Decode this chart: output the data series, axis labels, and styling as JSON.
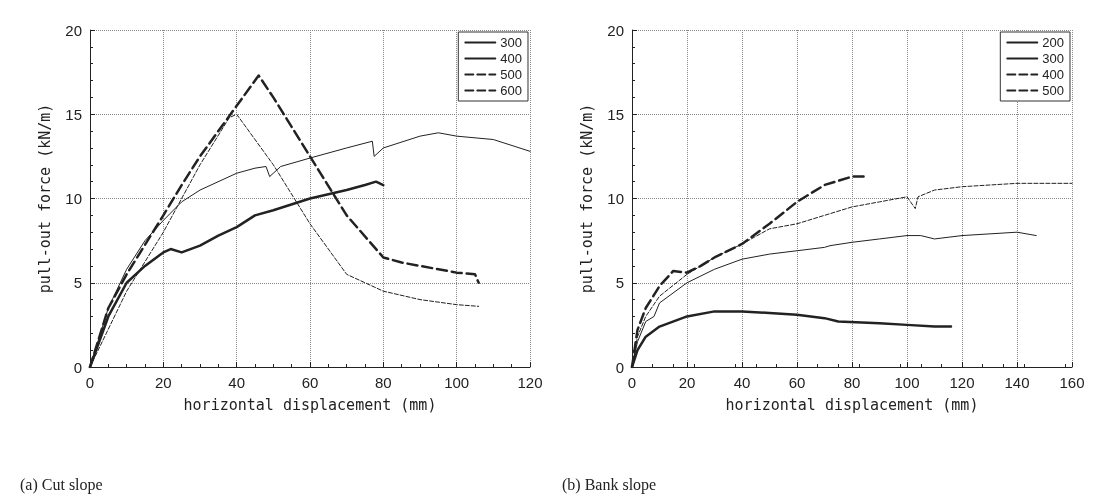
{
  "chart_data": [
    {
      "type": "line",
      "xlabel": "horizontal displacement (mm)",
      "ylabel": "pull-out force (kN/m)",
      "annotations": [
        "(a) Cut slope"
      ],
      "xlim": [
        0,
        120
      ],
      "xticks": [
        0,
        20,
        40,
        60,
        80,
        100,
        120
      ],
      "ylim": [
        0,
        20
      ],
      "yticks": [
        0,
        5,
        10,
        15,
        20
      ],
      "grid": true,
      "legend": "top right",
      "marker": "none",
      "series": [
        {
          "name": "300",
          "color": "#222222",
          "line_style": "solid",
          "x": [
            0,
            5,
            10,
            15,
            20,
            22,
            25,
            30,
            35,
            40,
            45,
            50,
            60,
            70,
            75,
            78,
            80
          ],
          "values": [
            0,
            3,
            5,
            6,
            6.8,
            7,
            6.8,
            7.2,
            7.8,
            8.3,
            9,
            9.3,
            10,
            10.5,
            10.8,
            11,
            10.8
          ]
        },
        {
          "name": "400",
          "color": "#222222",
          "line_style": "solid",
          "x": [
            0,
            5,
            10,
            15,
            20,
            25,
            30,
            40,
            45,
            48,
            49,
            52,
            60,
            70,
            77,
            77.5,
            80,
            90,
            95,
            100,
            110,
            120
          ],
          "values": [
            0,
            3.5,
            5.8,
            7.5,
            8.7,
            9.8,
            10.5,
            11.5,
            11.8,
            11.9,
            11.3,
            11.9,
            12.4,
            13,
            13.4,
            12.5,
            13,
            13.7,
            13.9,
            13.7,
            13.5,
            12.8
          ]
        },
        {
          "name": "500",
          "color": "#222222",
          "line_style": "dashed",
          "x": [
            0,
            10,
            20,
            30,
            38,
            40,
            50,
            60,
            70,
            80,
            90,
            100,
            106
          ],
          "values": [
            0,
            4.5,
            8,
            12,
            14.8,
            15,
            12,
            8.5,
            5.5,
            4.5,
            4,
            3.7,
            3.6
          ]
        },
        {
          "name": "600",
          "color": "#222222",
          "line_style": "dashed",
          "x": [
            0,
            5,
            10,
            20,
            25,
            30,
            35,
            40,
            46,
            50,
            60,
            70,
            80,
            85,
            90,
            100,
            105,
            106
          ],
          "values": [
            0,
            3.5,
            5.5,
            9,
            10.8,
            12.5,
            14,
            15.5,
            17.3,
            16,
            12.5,
            9,
            6.5,
            6.2,
            6,
            5.6,
            5.5,
            5
          ]
        }
      ]
    },
    {
      "type": "line",
      "xlabel": "horizontal displacement (mm)",
      "ylabel": "pull-out force (kN/m)",
      "annotations": [
        "(b) Bank slope"
      ],
      "xlim": [
        0,
        160
      ],
      "xticks": [
        0,
        20,
        40,
        60,
        80,
        100,
        120,
        140,
        160
      ],
      "ylim": [
        0,
        20
      ],
      "yticks": [
        0,
        5,
        10,
        15,
        20
      ],
      "grid": true,
      "legend": "top right",
      "marker": "none",
      "series": [
        {
          "name": "200",
          "color": "#222222",
          "line_style": "solid",
          "x": [
            0,
            2,
            5,
            10,
            20,
            30,
            40,
            50,
            60,
            70,
            75,
            90,
            100,
            110,
            116
          ],
          "values": [
            0,
            1,
            1.8,
            2.4,
            3,
            3.3,
            3.3,
            3.2,
            3.1,
            2.9,
            2.7,
            2.6,
            2.5,
            2.4,
            2.4
          ]
        },
        {
          "name": "300",
          "color": "#222222",
          "line_style": "solid",
          "x": [
            0,
            2,
            5,
            8,
            10,
            20,
            30,
            40,
            50,
            60,
            70,
            72,
            80,
            90,
            100,
            105,
            110,
            120,
            140,
            147
          ],
          "values": [
            0,
            1.5,
            2.7,
            3,
            3.8,
            5,
            5.8,
            6.4,
            6.7,
            6.9,
            7.1,
            7.2,
            7.4,
            7.6,
            7.8,
            7.8,
            7.6,
            7.8,
            8,
            7.8
          ]
        },
        {
          "name": "400",
          "color": "#222222",
          "line_style": "dashed",
          "x": [
            0,
            2,
            5,
            10,
            20,
            30,
            40,
            50,
            60,
            70,
            80,
            90,
            100,
            103,
            104,
            110,
            120,
            140,
            160
          ],
          "values": [
            0,
            1.8,
            3,
            4.2,
            5.5,
            6.5,
            7.3,
            8.2,
            8.5,
            9,
            9.5,
            9.8,
            10.1,
            9.4,
            10.1,
            10.5,
            10.7,
            10.9,
            10.9
          ]
        },
        {
          "name": "500",
          "color": "#222222",
          "line_style": "dashed",
          "x": [
            0,
            2,
            5,
            10,
            15,
            20,
            25,
            30,
            40,
            50,
            60,
            70,
            80,
            85
          ],
          "values": [
            0,
            2.2,
            3.5,
            4.8,
            5.7,
            5.6,
            6,
            6.5,
            7.3,
            8.5,
            9.8,
            10.8,
            11.3,
            11.3
          ]
        }
      ]
    }
  ]
}
